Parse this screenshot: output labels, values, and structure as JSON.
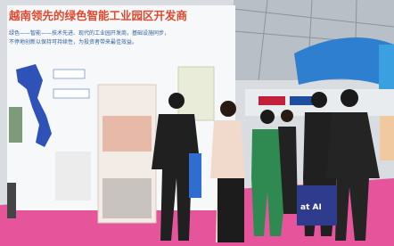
{
  "scene": {
    "banner": {
      "title": "越南领先的绿色智能工业园区开发商",
      "lines": [
        "绿色——智能——技术先进、现代的工业园开发商，基础设施同步，",
        "不停地创新以保持可持续性，为投资者带来最佳效益。"
      ]
    },
    "bag_text": "at AI"
  }
}
